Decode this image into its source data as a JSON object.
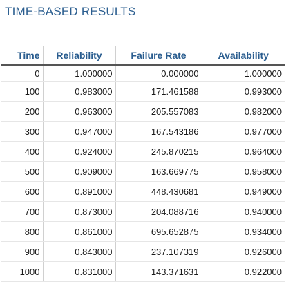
{
  "panel": {
    "title": "TIME-BASED RESULTS"
  },
  "table": {
    "headers": {
      "time": "Time",
      "reliability": "Reliability",
      "failure_rate": "Failure Rate",
      "availability": "Availability"
    },
    "rows": [
      {
        "time": "0",
        "reliability": "1.000000",
        "failure_rate": "0.000000",
        "availability": "1.000000"
      },
      {
        "time": "100",
        "reliability": "0.983000",
        "failure_rate": "171.461588",
        "availability": "0.993000"
      },
      {
        "time": "200",
        "reliability": "0.963000",
        "failure_rate": "205.557083",
        "availability": "0.982000"
      },
      {
        "time": "300",
        "reliability": "0.947000",
        "failure_rate": "167.543186",
        "availability": "0.977000"
      },
      {
        "time": "400",
        "reliability": "0.924000",
        "failure_rate": "245.870215",
        "availability": "0.964000"
      },
      {
        "time": "500",
        "reliability": "0.909000",
        "failure_rate": "163.669775",
        "availability": "0.958000"
      },
      {
        "time": "600",
        "reliability": "0.891000",
        "failure_rate": "448.430681",
        "availability": "0.949000"
      },
      {
        "time": "700",
        "reliability": "0.873000",
        "failure_rate": "204.088716",
        "availability": "0.940000"
      },
      {
        "time": "800",
        "reliability": "0.861000",
        "failure_rate": "695.652875",
        "availability": "0.934000"
      },
      {
        "time": "900",
        "reliability": "0.843000",
        "failure_rate": "237.107319",
        "availability": "0.926000"
      },
      {
        "time": "1000",
        "reliability": "0.831000",
        "failure_rate": "143.371631",
        "availability": "0.922000"
      }
    ]
  },
  "colors": {
    "title": "#2a5d8f",
    "header_text": "#2a5d8f",
    "title_rule": "#3a9bb2"
  }
}
